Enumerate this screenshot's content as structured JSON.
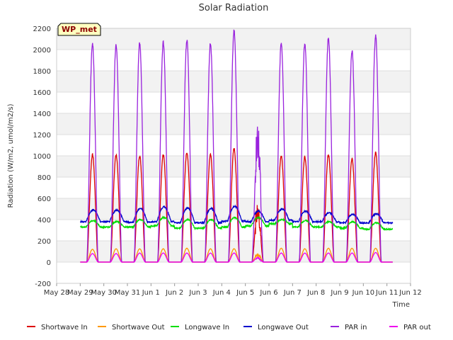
{
  "chart_data": {
    "type": "line",
    "title": "Solar Radiation",
    "xlabel": "Time",
    "ylabel": "Radiation (W/m2, umol/m2/s)",
    "ylim": [
      -200,
      2200
    ],
    "yticks": [
      -200,
      0,
      200,
      400,
      600,
      800,
      1000,
      1200,
      1400,
      1600,
      1800,
      2000,
      2200
    ],
    "xlim": [
      0,
      15
    ],
    "xtick_labels": [
      "May 28",
      "May 29",
      "May 30",
      "May 31",
      "Jun 1",
      "Jun 2",
      "Jun 3",
      "Jun 4",
      "Jun 5",
      "Jun 6",
      "Jun 7",
      "Jun 8",
      "Jun 9",
      "Jun 10",
      "Jun 11",
      "Jun 12"
    ],
    "grid": true,
    "legend_position": "bottom",
    "annotation": "WP_met",
    "days": [
      "May 28",
      "May 29",
      "May 30",
      "May 31",
      "Jun 1",
      "Jun 2",
      "Jun 3",
      "Jun 4",
      "Jun 5",
      "Jun 6",
      "Jun 7",
      "Jun 8",
      "Jun 9",
      "Jun 10",
      "Jun 11"
    ],
    "series": [
      {
        "name": "Shortwave In",
        "color": "#dd0000",
        "kind": "solar",
        "peaks": [
          1010,
          1010,
          1000,
          1010,
          1030,
          1010,
          1070,
          470,
          1000,
          990,
          1010,
          970,
          1030,
          1040
        ]
      },
      {
        "name": "Shortwave Out",
        "color": "#ff9900",
        "kind": "solar",
        "peaks": [
          120,
          125,
          125,
          125,
          130,
          125,
          125,
          70,
          130,
          125,
          130,
          130,
          130,
          135
        ]
      },
      {
        "name": "Longwave In",
        "color": "#00dd00",
        "kind": "longwave",
        "base": [
          330,
          330,
          330,
          340,
          320,
          320,
          330,
          340,
          360,
          330,
          330,
          320,
          310,
          310
        ],
        "peaks": [
          390,
          380,
          400,
          420,
          400,
          400,
          420,
          420,
          400,
          390,
          380,
          380,
          370,
          360
        ]
      },
      {
        "name": "Longwave Out",
        "color": "#0000cc",
        "kind": "longwave",
        "base": [
          380,
          380,
          375,
          380,
          370,
          370,
          385,
          380,
          395,
          380,
          380,
          370,
          370,
          370
        ],
        "peaks": [
          490,
          490,
          505,
          520,
          510,
          505,
          525,
          480,
          500,
          480,
          465,
          450,
          455,
          460
        ]
      },
      {
        "name": "PAR in",
        "color": "#9922dd",
        "kind": "solar",
        "peaks": [
          2050,
          2040,
          2060,
          2070,
          2090,
          2060,
          2180,
          1180,
          2060,
          2060,
          2110,
          1990,
          2130,
          2140
        ]
      },
      {
        "name": "PAR out",
        "color": "#ee00ee",
        "kind": "solar",
        "peaks": [
          80,
          80,
          85,
          85,
          85,
          85,
          85,
          40,
          85,
          85,
          85,
          85,
          90,
          90
        ]
      }
    ]
  }
}
